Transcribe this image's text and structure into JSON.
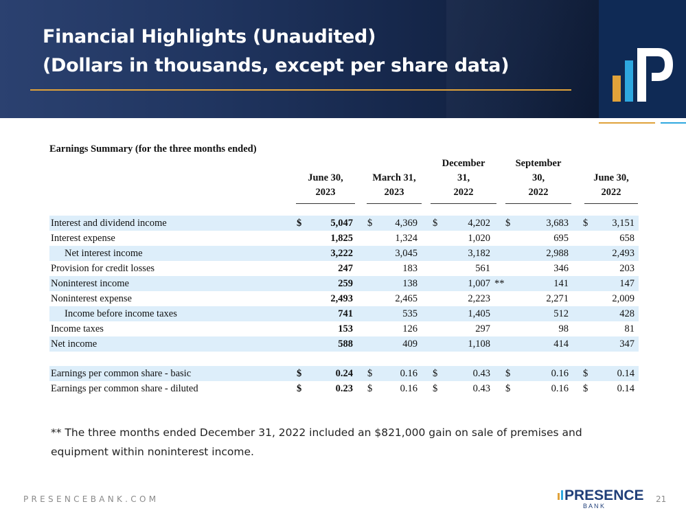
{
  "header": {
    "title_line1": "Financial Highlights (Unaudited)",
    "title_line2": "(Dollars in thousands, except per share data)"
  },
  "table": {
    "section_title": "Earnings Summary (for the three months ended)",
    "columns": [
      {
        "line1": "",
        "line2": "June 30,",
        "line3": "2023"
      },
      {
        "line1": "",
        "line2": "March  31,",
        "line3": "2023"
      },
      {
        "line1": "December",
        "line2": "31,",
        "line3": "2022"
      },
      {
        "line1": "September",
        "line2": "30,",
        "line3": "2022"
      },
      {
        "line1": "",
        "line2": "June 30,",
        "line3": "2022"
      }
    ],
    "rows": [
      {
        "label": "Interest and dividend income",
        "indent": false,
        "shaded": true,
        "currency": true,
        "values": [
          "5,047",
          "4,369",
          "4,202",
          "3,683",
          "3,151"
        ],
        "note": ""
      },
      {
        "label": "Interest expense",
        "indent": false,
        "shaded": false,
        "currency": false,
        "values": [
          "1,825",
          "1,324",
          "1,020",
          "695",
          "658"
        ],
        "note": ""
      },
      {
        "label": "Net interest income",
        "indent": true,
        "shaded": true,
        "currency": false,
        "values": [
          "3,222",
          "3,045",
          "3,182",
          "2,988",
          "2,493"
        ],
        "note": ""
      },
      {
        "label": "Provision for credit losses",
        "indent": false,
        "shaded": false,
        "currency": false,
        "values": [
          "247",
          "183",
          "561",
          "346",
          "203"
        ],
        "note": ""
      },
      {
        "label": "Noninterest income",
        "indent": false,
        "shaded": true,
        "currency": false,
        "values": [
          "259",
          "138",
          "1,007",
          "141",
          "147"
        ],
        "note": "**"
      },
      {
        "label": "Noninterest expense",
        "indent": false,
        "shaded": false,
        "currency": false,
        "values": [
          "2,493",
          "2,465",
          "2,223",
          "2,271",
          "2,009"
        ],
        "note": ""
      },
      {
        "label": "Income before income taxes",
        "indent": true,
        "shaded": true,
        "currency": false,
        "values": [
          "741",
          "535",
          "1,405",
          "512",
          "428"
        ],
        "note": ""
      },
      {
        "label": "Income taxes",
        "indent": false,
        "shaded": false,
        "currency": false,
        "values": [
          "153",
          "126",
          "297",
          "98",
          "81"
        ],
        "note": ""
      },
      {
        "label": "Net income",
        "indent": false,
        "shaded": true,
        "currency": false,
        "values": [
          "588",
          "409",
          "1,108",
          "414",
          "347"
        ],
        "note": ""
      },
      {
        "label": "Earnings per common share - basic",
        "indent": false,
        "shaded": true,
        "currency": true,
        "values": [
          "0.24",
          "0.16",
          "0.43",
          "0.16",
          "0.14"
        ],
        "note": ""
      },
      {
        "label": "Earnings per common share - diluted",
        "indent": false,
        "shaded": false,
        "currency": true,
        "values": [
          "0.23",
          "0.16",
          "0.43",
          "0.16",
          "0.14"
        ],
        "note": ""
      }
    ],
    "currency_symbol": "$"
  },
  "footnote": "** The three months ended December 31, 2022 included an $821,000 gain on sale of premises and equipment within noninterest income.",
  "footer": {
    "url": "PRESENCEBANK.COM",
    "brand_top": "PRESENCE",
    "brand_bottom": "B A N K",
    "page_number": "21"
  },
  "colors": {
    "header_dark": "#152649",
    "accent_gold": "#e0a23a",
    "accent_blue": "#2ea8e0",
    "row_shade": "#ddeefa"
  }
}
